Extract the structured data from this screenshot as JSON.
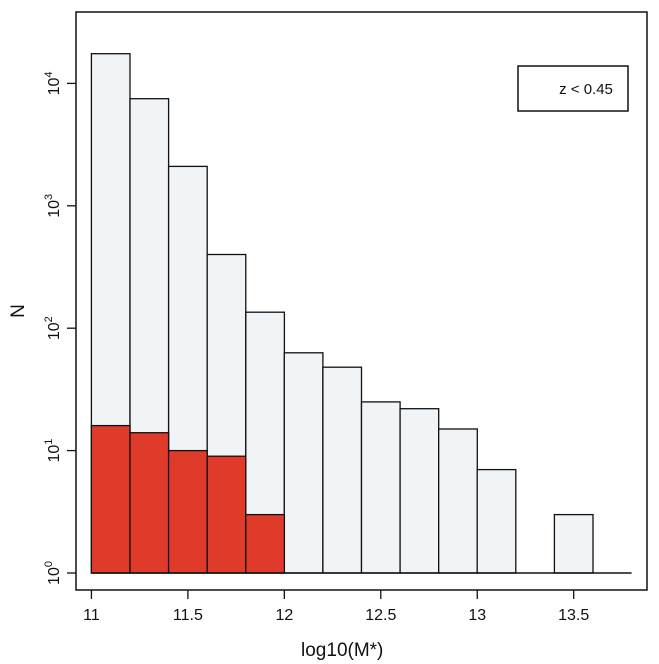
{
  "chart_data": {
    "type": "bar",
    "title": "",
    "xlabel": "log10(M*)",
    "ylabel": "N",
    "yscale": "log",
    "ylim": [
      1,
      30000
    ],
    "xlim": [
      10.92,
      13.88
    ],
    "bin_width": 0.2,
    "bin_left_edges": [
      11.0,
      11.2,
      11.4,
      11.6,
      11.8,
      12.0,
      12.2,
      12.4,
      12.6,
      12.8,
      13.0,
      13.2,
      13.4
    ],
    "series": [
      {
        "color": "#f0f4f6",
        "values": [
          17500,
          7500,
          2100,
          400,
          135,
          63,
          48,
          25,
          22,
          15,
          7,
          1,
          3
        ]
      },
      {
        "color": "#e03a2a",
        "values": [
          16,
          14,
          10,
          9,
          3,
          1,
          1,
          1,
          1,
          1,
          1,
          1,
          1
        ]
      }
    ],
    "x_ticks": [
      {
        "value": 11.0,
        "label": "11"
      },
      {
        "value": 11.5,
        "label": "11.5"
      },
      {
        "value": 12.0,
        "label": "12"
      },
      {
        "value": 12.5,
        "label": "12.5"
      },
      {
        "value": 13.0,
        "label": "13"
      },
      {
        "value": 13.5,
        "label": "13.5"
      }
    ],
    "y_ticks": [
      {
        "value": 1,
        "base": "10",
        "exp": "0"
      },
      {
        "value": 10,
        "base": "10",
        "exp": "1"
      },
      {
        "value": 100,
        "base": "10",
        "exp": "2"
      },
      {
        "value": 1000,
        "base": "10",
        "exp": "3"
      },
      {
        "value": 10000,
        "base": "10",
        "exp": "4"
      }
    ],
    "legend": {
      "text": "z < 0.45",
      "position": "top-right"
    },
    "grid": false
  }
}
